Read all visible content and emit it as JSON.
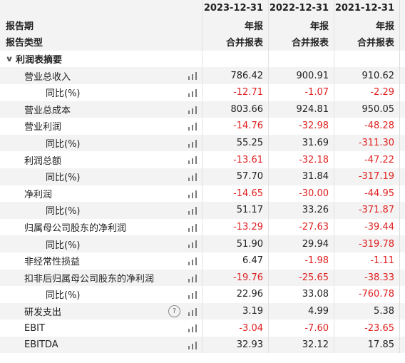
{
  "header": {
    "periods": [
      "2023-12-31",
      "2022-12-31",
      "2021-12-31"
    ],
    "row_report_period_label": "报告期",
    "report_kind": [
      "年报",
      "年报",
      "年报"
    ],
    "row_report_type_label": "报告类型",
    "report_type": [
      "合并报表",
      "合并报表",
      "合并报表"
    ]
  },
  "section": {
    "title": "利润表摘要",
    "expanded": true
  },
  "rows": [
    {
      "key": "revenue",
      "label": "营业总收入",
      "level": "item",
      "values": [
        "786.42",
        "900.91",
        "910.62"
      ]
    },
    {
      "key": "revenue_yoy",
      "label": "同比(%)",
      "level": "sub",
      "values": [
        "-12.71",
        "-1.07",
        "-2.29"
      ]
    },
    {
      "key": "total_cost",
      "label": "营业总成本",
      "level": "item",
      "values": [
        "803.66",
        "924.81",
        "950.05"
      ]
    },
    {
      "key": "operating_profit",
      "label": "营业利润",
      "level": "item",
      "values": [
        "-14.76",
        "-32.98",
        "-48.28"
      ]
    },
    {
      "key": "operating_profit_yoy",
      "label": "同比(%)",
      "level": "sub",
      "values": [
        "55.25",
        "31.69",
        "-311.30"
      ]
    },
    {
      "key": "total_profit",
      "label": "利润总额",
      "level": "item",
      "values": [
        "-13.61",
        "-32.18",
        "-47.22"
      ]
    },
    {
      "key": "total_profit_yoy",
      "label": "同比(%)",
      "level": "sub",
      "values": [
        "57.70",
        "31.84",
        "-317.19"
      ]
    },
    {
      "key": "net_profit",
      "label": "净利润",
      "level": "item",
      "values": [
        "-14.65",
        "-30.00",
        "-44.95"
      ]
    },
    {
      "key": "net_profit_yoy",
      "label": "同比(%)",
      "level": "sub",
      "values": [
        "51.17",
        "33.26",
        "-371.87"
      ]
    },
    {
      "key": "parent_net_profit",
      "label": "归属母公司股东的净利润",
      "level": "item",
      "values": [
        "-13.29",
        "-27.63",
        "-39.44"
      ]
    },
    {
      "key": "parent_net_profit_yoy",
      "label": "同比(%)",
      "level": "sub",
      "values": [
        "51.90",
        "29.94",
        "-319.78"
      ]
    },
    {
      "key": "non_recurring",
      "label": "非经常性损益",
      "level": "item",
      "values": [
        "6.47",
        "-1.98",
        "-1.11"
      ]
    },
    {
      "key": "deducted_net_profit",
      "label": "扣非后归属母公司股东的净利润",
      "level": "item",
      "values": [
        "-19.76",
        "-25.65",
        "-38.33"
      ]
    },
    {
      "key": "deducted_net_profit_yoy",
      "label": "同比(%)",
      "level": "sub",
      "values": [
        "22.96",
        "33.08",
        "-760.78"
      ]
    },
    {
      "key": "rd_expense",
      "label": "研发支出",
      "level": "item",
      "values": [
        "3.19",
        "4.99",
        "5.38"
      ],
      "help": true
    },
    {
      "key": "ebit",
      "label": "EBIT",
      "level": "item",
      "values": [
        "-3.04",
        "-7.60",
        "-23.65"
      ]
    },
    {
      "key": "ebitda",
      "label": "EBITDA",
      "level": "item",
      "values": [
        "32.93",
        "32.12",
        "17.85"
      ]
    }
  ],
  "icons": {
    "chart": "bar-chart-icon",
    "help": "question-mark-icon",
    "collapse": "chevron-down-icon"
  },
  "colors": {
    "negative": "#e02020",
    "zebra": "#f3f3f3"
  }
}
